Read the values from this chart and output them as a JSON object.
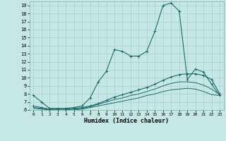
{
  "xlabel": "Humidex (Indice chaleur)",
  "background_color": "#c5e8e5",
  "grid_color": "#a8d0ce",
  "line_color": "#1a6b6b",
  "xlim": [
    -0.5,
    23.5
  ],
  "ylim": [
    6,
    19.5
  ],
  "xticks": [
    0,
    1,
    2,
    3,
    4,
    5,
    6,
    7,
    8,
    9,
    10,
    11,
    12,
    13,
    14,
    15,
    16,
    17,
    18,
    19,
    20,
    21,
    22,
    23
  ],
  "yticks": [
    6,
    7,
    8,
    9,
    10,
    11,
    12,
    13,
    14,
    15,
    16,
    17,
    18,
    19
  ],
  "line1_x": [
    0,
    1,
    2,
    3,
    4,
    5,
    6,
    7,
    8,
    9,
    10,
    11,
    12,
    13,
    14,
    15,
    16,
    17,
    18,
    19,
    20,
    21,
    22,
    23
  ],
  "line1_y": [
    7.8,
    7.0,
    6.2,
    6.2,
    6.2,
    6.3,
    6.5,
    7.5,
    9.5,
    10.8,
    13.5,
    13.3,
    12.7,
    12.7,
    13.3,
    15.8,
    19.0,
    19.3,
    18.3,
    9.8,
    11.1,
    10.7,
    9.2,
    7.8
  ],
  "line2_x": [
    0,
    1,
    2,
    3,
    4,
    5,
    6,
    7,
    8,
    9,
    10,
    11,
    12,
    13,
    14,
    15,
    16,
    17,
    18,
    19,
    20,
    21,
    22,
    23
  ],
  "line2_y": [
    6.5,
    6.3,
    6.1,
    6.1,
    6.1,
    6.2,
    6.3,
    6.5,
    6.8,
    7.2,
    7.6,
    7.9,
    8.2,
    8.5,
    8.8,
    9.2,
    9.7,
    10.1,
    10.4,
    10.5,
    10.5,
    10.3,
    9.8,
    8.0
  ],
  "line3_x": [
    0,
    1,
    2,
    3,
    4,
    5,
    6,
    7,
    8,
    9,
    10,
    11,
    12,
    13,
    14,
    15,
    16,
    17,
    18,
    19,
    20,
    21,
    22,
    23
  ],
  "line3_y": [
    6.3,
    6.2,
    6.1,
    6.0,
    6.0,
    6.1,
    6.2,
    6.4,
    6.7,
    7.0,
    7.3,
    7.5,
    7.8,
    8.0,
    8.3,
    8.6,
    9.0,
    9.3,
    9.5,
    9.5,
    9.4,
    9.1,
    8.6,
    7.9
  ],
  "line4_x": [
    0,
    1,
    2,
    3,
    4,
    5,
    6,
    7,
    8,
    9,
    10,
    11,
    12,
    13,
    14,
    15,
    16,
    17,
    18,
    19,
    20,
    21,
    22,
    23
  ],
  "line4_y": [
    6.2,
    6.1,
    6.0,
    5.9,
    5.9,
    6.0,
    6.1,
    6.3,
    6.5,
    6.7,
    6.9,
    7.1,
    7.3,
    7.5,
    7.8,
    8.0,
    8.3,
    8.5,
    8.6,
    8.7,
    8.6,
    8.3,
    7.9,
    7.8
  ]
}
